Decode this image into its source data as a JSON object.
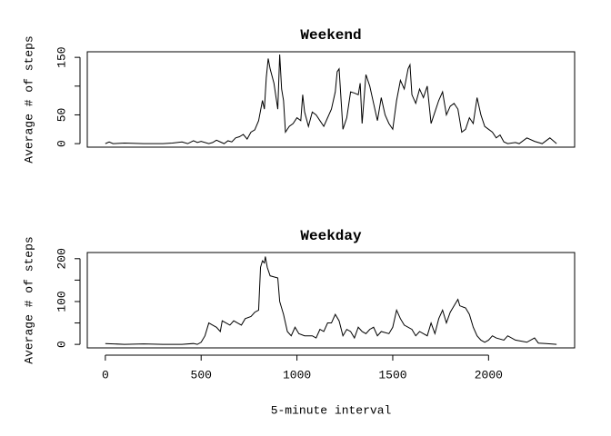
{
  "chart_data": [
    {
      "type": "line",
      "title": "Weekend",
      "ylabel": "Average # of steps",
      "color": "#000000",
      "x": [
        0,
        20,
        40,
        100,
        200,
        300,
        350,
        400,
        430,
        460,
        480,
        500,
        540,
        560,
        580,
        600,
        620,
        640,
        660,
        680,
        700,
        720,
        740,
        760,
        780,
        800,
        820,
        830,
        840,
        850,
        860,
        880,
        900,
        910,
        920,
        930,
        940,
        960,
        980,
        1000,
        1020,
        1030,
        1040,
        1060,
        1080,
        1100,
        1120,
        1140,
        1160,
        1180,
        1200,
        1210,
        1220,
        1240,
        1260,
        1280,
        1300,
        1320,
        1330,
        1340,
        1360,
        1380,
        1400,
        1420,
        1440,
        1460,
        1480,
        1500,
        1520,
        1540,
        1560,
        1580,
        1590,
        1600,
        1620,
        1640,
        1660,
        1680,
        1700,
        1720,
        1740,
        1760,
        1780,
        1800,
        1820,
        1840,
        1860,
        1880,
        1900,
        1920,
        1940,
        1960,
        1980,
        2000,
        2020,
        2040,
        2060,
        2080,
        2100,
        2140,
        2160,
        2200,
        2240,
        2280,
        2320,
        2355
      ],
      "values": [
        0,
        3,
        0,
        1,
        0,
        0,
        1,
        3,
        0,
        5,
        2,
        4,
        0,
        2,
        6,
        3,
        0,
        5,
        3,
        10,
        12,
        16,
        8,
        20,
        24,
        40,
        75,
        60,
        115,
        148,
        130,
        105,
        60,
        155,
        95,
        75,
        20,
        30,
        35,
        45,
        40,
        85,
        55,
        30,
        55,
        50,
        40,
        30,
        45,
        60,
        90,
        125,
        130,
        25,
        45,
        90,
        88,
        85,
        105,
        35,
        120,
        100,
        70,
        40,
        80,
        50,
        35,
        25,
        75,
        110,
        95,
        130,
        137,
        85,
        70,
        95,
        80,
        100,
        35,
        55,
        75,
        90,
        50,
        65,
        70,
        60,
        20,
        25,
        45,
        35,
        80,
        50,
        30,
        25,
        20,
        10,
        15,
        3,
        0,
        2,
        0,
        10,
        4,
        0,
        10,
        0
      ],
      "xlim": [
        -94.2,
        2449.2
      ],
      "ylim": [
        -6.1,
        159.7
      ],
      "yticks": [
        0,
        50,
        150
      ],
      "yticks_unlabeled": [
        100
      ]
    },
    {
      "type": "line",
      "title": "Weekday",
      "ylabel": "Average # of steps",
      "xlabel": "5-minute interval",
      "color": "#000000",
      "x": [
        0,
        100,
        200,
        300,
        400,
        460,
        480,
        500,
        520,
        540,
        560,
        580,
        600,
        610,
        630,
        650,
        670,
        690,
        710,
        730,
        760,
        780,
        800,
        810,
        820,
        830,
        835,
        845,
        860,
        900,
        910,
        930,
        950,
        970,
        990,
        1010,
        1040,
        1080,
        1100,
        1120,
        1140,
        1160,
        1180,
        1200,
        1220,
        1240,
        1260,
        1280,
        1300,
        1320,
        1340,
        1360,
        1380,
        1400,
        1420,
        1440,
        1480,
        1500,
        1520,
        1540,
        1560,
        1600,
        1620,
        1640,
        1680,
        1700,
        1720,
        1740,
        1760,
        1780,
        1800,
        1820,
        1840,
        1850,
        1880,
        1900,
        1920,
        1940,
        1960,
        1980,
        2000,
        2020,
        2040,
        2080,
        2100,
        2140,
        2200,
        2240,
        2260,
        2300,
        2355
      ],
      "values": [
        2,
        0,
        1,
        0,
        0,
        2,
        0,
        5,
        20,
        50,
        45,
        40,
        30,
        55,
        50,
        45,
        55,
        50,
        45,
        60,
        65,
        75,
        80,
        180,
        195,
        190,
        205,
        180,
        160,
        155,
        100,
        70,
        30,
        20,
        40,
        25,
        20,
        20,
        15,
        35,
        30,
        50,
        50,
        70,
        55,
        20,
        35,
        30,
        15,
        40,
        30,
        25,
        35,
        40,
        20,
        30,
        25,
        40,
        80,
        60,
        45,
        35,
        20,
        30,
        20,
        50,
        25,
        60,
        80,
        50,
        75,
        90,
        105,
        90,
        85,
        70,
        40,
        20,
        10,
        5,
        10,
        20,
        15,
        10,
        20,
        10,
        5,
        15,
        3,
        2,
        0
      ],
      "xlim": [
        -94.2,
        2449.2
      ],
      "ylim": [
        -8.2,
        214.4
      ],
      "yticks": [
        0,
        100,
        200
      ],
      "yticks_unlabeled": [
        50,
        150
      ],
      "xticks": [
        0,
        500,
        1000,
        1500,
        2000
      ]
    }
  ]
}
